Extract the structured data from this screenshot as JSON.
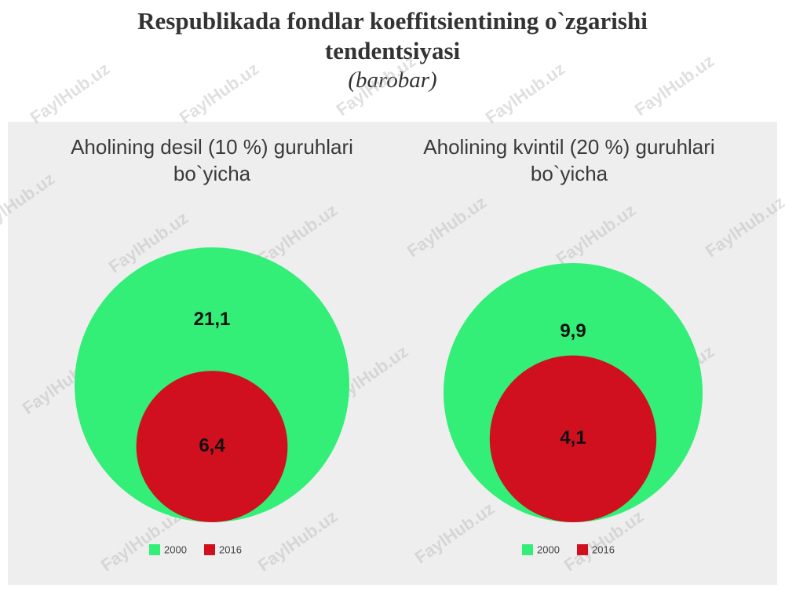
{
  "header": {
    "title": "Respublikada fondlar koeffitsientining o`zgarishi tendentsiyasi",
    "subtitle": "(barobar)",
    "watermark": "FaylHub.uz"
  },
  "chart_data": [
    {
      "type": "bubble",
      "title": "Aholining desil (10 %) guruhlari bo`yicha",
      "categories": [
        "2000",
        "2016"
      ],
      "values": [
        21.1,
        6.4
      ],
      "value_labels": [
        "21,1",
        "6,4"
      ],
      "colors": [
        "#33ee77",
        "#d0101e"
      ]
    },
    {
      "type": "bubble",
      "title": "Aholining kvintil (20 %) guruhlari bo`yicha",
      "categories": [
        "2000",
        "2016"
      ],
      "values": [
        9.9,
        4.1
      ],
      "value_labels": [
        "9,9",
        "4,1"
      ],
      "colors": [
        "#33ee77",
        "#d0101e"
      ]
    }
  ]
}
